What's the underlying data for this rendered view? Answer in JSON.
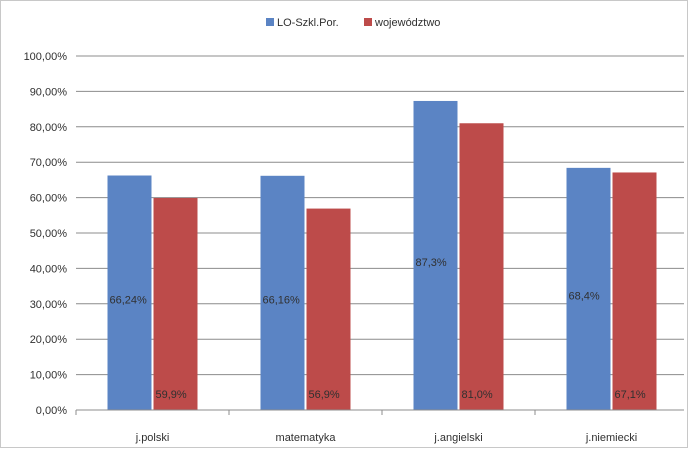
{
  "chart_data": {
    "type": "bar",
    "categories": [
      "j.polski",
      "matematyka",
      "j.angielski",
      "j.niemiecki"
    ],
    "series": [
      {
        "name": "LO-Szkl.Por.",
        "color": "#5b84c4",
        "values": [
          66.24,
          66.16,
          87.3,
          68.4
        ],
        "labels": [
          "66,24%",
          "66,16%",
          "87,3%",
          "68,4%"
        ]
      },
      {
        "name": "województwo",
        "color": "#bd4b4a",
        "values": [
          59.9,
          56.9,
          81.0,
          67.1
        ],
        "labels": [
          "59,9%",
          "56,9%",
          "81,0%",
          "67,1%"
        ]
      }
    ],
    "ylim": [
      0,
      100
    ],
    "ytick_labels": [
      "0,00%",
      "10,00%",
      "20,00%",
      "30,00%",
      "40,00%",
      "50,00%",
      "60,00%",
      "70,00%",
      "80,00%",
      "90,00%",
      "100,00%"
    ],
    "ytick_values": [
      0,
      10,
      20,
      30,
      40,
      50,
      60,
      70,
      80,
      90,
      100
    ],
    "grid": true,
    "legend_position": "top-center",
    "title": "",
    "xlabel": "",
    "ylabel": ""
  }
}
